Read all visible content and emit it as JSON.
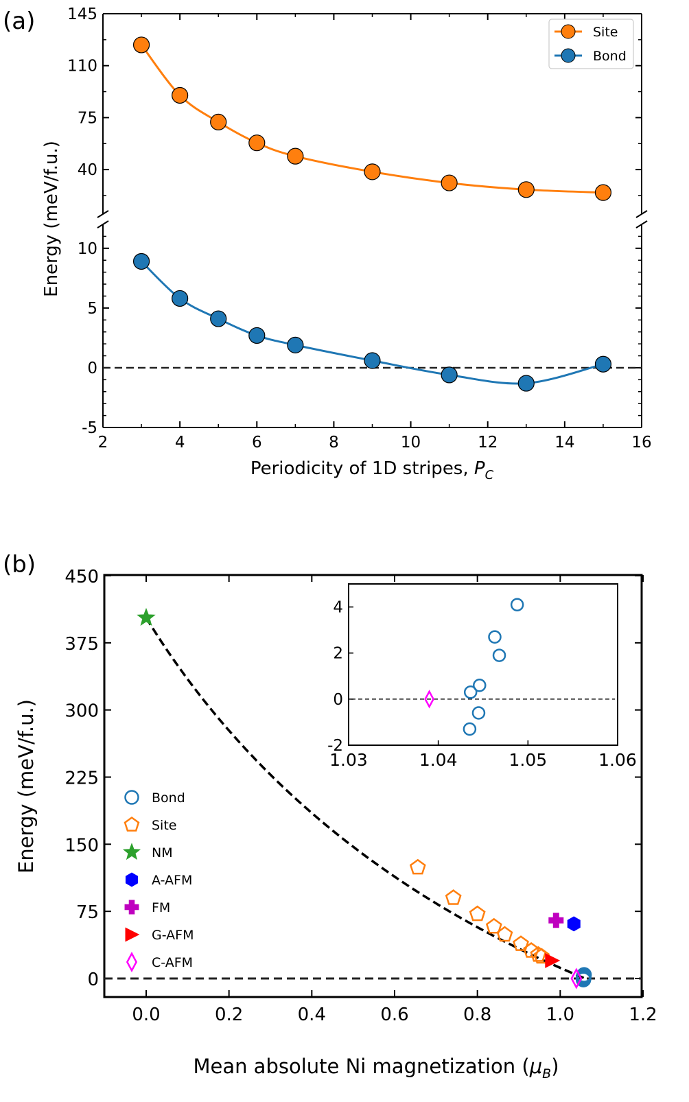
{
  "chart_data": [
    {
      "panel_label": "(a)",
      "type": "line",
      "xlabel": "Periodicity of 1D stripes, ",
      "xlabel_var": "P",
      "xlabel_sub": "C",
      "ylabel": "Energy (meV/f.u.)",
      "xlim": [
        2,
        16
      ],
      "xticks": [
        "2",
        "4",
        "6",
        "8",
        "10",
        "12",
        "14",
        "16"
      ],
      "upper_ylim": [
        10,
        145
      ],
      "upper_yticks": [
        "40",
        "75",
        "110",
        "145"
      ],
      "lower_ylim": [
        -5,
        12
      ],
      "lower_yticks": [
        "-5",
        "0",
        "5",
        "10"
      ],
      "reference_line_y": 0,
      "legend": [
        "Site",
        "Bond"
      ],
      "series": [
        {
          "name": "Site",
          "color": "#ff7f0e",
          "x": [
            3,
            4,
            5,
            6,
            7,
            9,
            11,
            13,
            15
          ],
          "y": [
            124,
            90,
            72,
            58,
            49,
            38.5,
            31,
            26.5,
            24.5
          ]
        },
        {
          "name": "Bond",
          "color": "#1f77b4",
          "x": [
            3,
            4,
            5,
            6,
            7,
            9,
            11,
            13,
            15
          ],
          "y": [
            8.9,
            5.8,
            4.1,
            2.7,
            1.9,
            0.6,
            -0.6,
            -1.3,
            0.3
          ]
        }
      ]
    },
    {
      "panel_label": "(b)",
      "type": "scatter",
      "xlabel": "Mean absolute Ni magnetization (",
      "xlabel_var": "μ",
      "xlabel_sub": "B",
      "xlabel_end": ")",
      "ylabel": "Energy (meV/f.u.)",
      "xlim": [
        -0.11,
        1.2
      ],
      "xticks": [
        "0.0",
        "0.2",
        "0.4",
        "0.6",
        "0.8",
        "1.0",
        "1.2"
      ],
      "ylim": [
        -20,
        450
      ],
      "yticks": [
        "0",
        "75",
        "150",
        "225",
        "300",
        "375",
        "450"
      ],
      "reference_line_y": 0,
      "fit_curve": {
        "x0": 0.0,
        "y0": 403,
        "x1": 1.06,
        "y1": 0,
        "bow": -0.3
      },
      "legend": [
        "Bond",
        "Site",
        "NM",
        "A-AFM",
        "FM",
        "G-AFM",
        "C-AFM"
      ],
      "series": [
        {
          "name": "Bond",
          "marker": "open-circle",
          "color": "#1f77b4",
          "x": [
            1.0435,
            1.0436,
            1.0445,
            1.0446,
            1.0463,
            1.0468,
            1.0488
          ],
          "y": [
            -1.3,
            0.3,
            -0.6,
            0.6,
            2.7,
            1.9,
            4.1
          ]
        },
        {
          "name": "Site",
          "marker": "open-pentagon",
          "color": "#ff7f0e",
          "x": [
            0.656,
            0.742,
            0.8,
            0.84,
            0.866,
            0.905,
            0.93,
            0.947,
            0.955
          ],
          "y": [
            124,
            90,
            72,
            58,
            49,
            38.5,
            31,
            26.5,
            24.5
          ]
        },
        {
          "name": "NM",
          "marker": "star",
          "color": "#2ca02c",
          "x": [
            0.0
          ],
          "y": [
            403
          ]
        },
        {
          "name": "A-AFM",
          "marker": "hexagon",
          "color": "#0000ff",
          "x": [
            1.033
          ],
          "y": [
            61
          ]
        },
        {
          "name": "FM",
          "marker": "plus",
          "color": "#bf00bf",
          "x": [
            0.99
          ],
          "y": [
            65
          ]
        },
        {
          "name": "G-AFM",
          "marker": "triangle-right",
          "color": "#ff0000",
          "x": [
            0.98
          ],
          "y": [
            20
          ]
        },
        {
          "name": "C-AFM",
          "marker": "open-diamond",
          "color": "#ff00ff",
          "x": [
            1.039
          ],
          "y": [
            0
          ]
        }
      ],
      "inset": {
        "xlim": [
          1.03,
          1.06
        ],
        "xticks": [
          "1.03",
          "1.04",
          "1.05",
          "1.06"
        ],
        "ylim": [
          -2,
          5
        ],
        "yticks": [
          "-2",
          "0",
          "2",
          "4"
        ],
        "reference_line_y": 0
      }
    }
  ]
}
